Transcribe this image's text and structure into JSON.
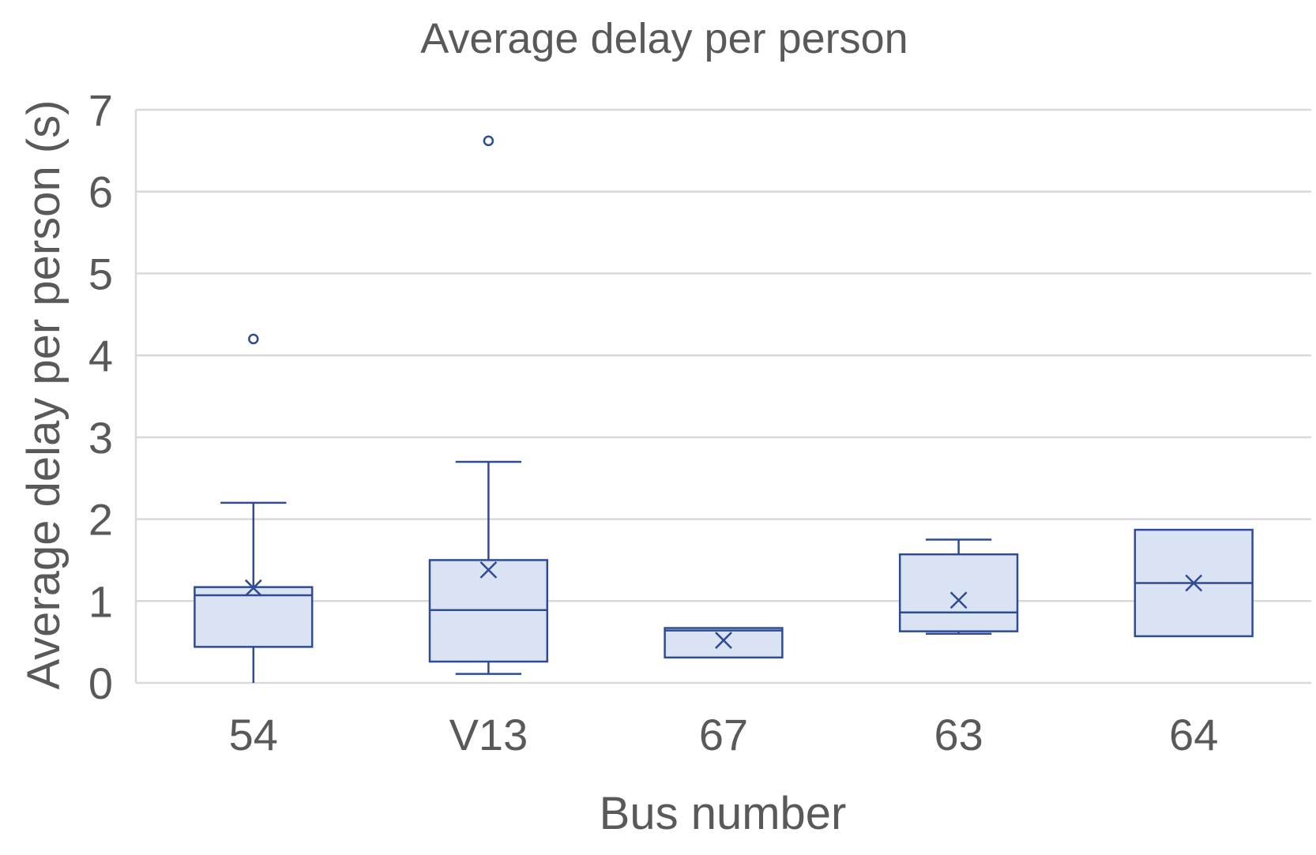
{
  "chart_data": {
    "type": "box",
    "title": "Average delay per person",
    "xlabel": "Bus number",
    "ylabel": "Average delay per person (s)",
    "ylim": [
      0,
      7
    ],
    "yticks": [
      "0",
      "1",
      "2",
      "3",
      "4",
      "5",
      "6",
      "7"
    ],
    "grid": true,
    "legend": "none",
    "colors": {
      "fill": "#dae3f3",
      "stroke": "#2f4b93",
      "grid": "#d9d9d9",
      "text": "#595959"
    },
    "categories": [
      "54",
      "V13",
      "67",
      "63",
      "64"
    ],
    "boxes": [
      {
        "category": "54",
        "min": 0.0,
        "q1": 0.44,
        "median": 1.07,
        "q3": 1.17,
        "max": 2.2,
        "mean": 1.16,
        "outliers": [
          4.2
        ]
      },
      {
        "category": "V13",
        "min": 0.11,
        "q1": 0.26,
        "median": 0.89,
        "q3": 1.5,
        "max": 2.7,
        "mean": 1.38,
        "outliers": [
          6.62
        ]
      },
      {
        "category": "67",
        "min": 0.31,
        "q1": 0.31,
        "median": 0.64,
        "q3": 0.67,
        "max": 0.67,
        "mean": 0.52,
        "outliers": []
      },
      {
        "category": "63",
        "min": 0.6,
        "q1": 0.63,
        "median": 0.86,
        "q3": 1.57,
        "max": 1.75,
        "mean": 1.01,
        "outliers": []
      },
      {
        "category": "64",
        "min": 0.57,
        "q1": 0.57,
        "median": 1.22,
        "q3": 1.87,
        "max": 1.87,
        "mean": 1.22,
        "outliers": []
      }
    ]
  }
}
